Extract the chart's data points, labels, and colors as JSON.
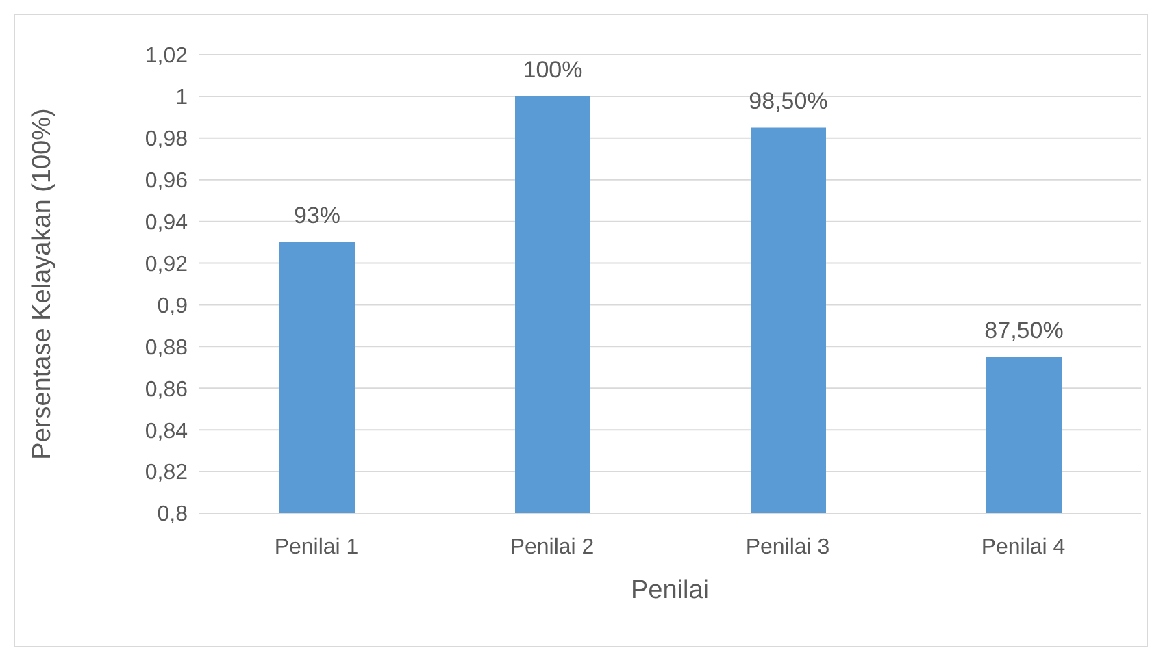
{
  "chart_data": {
    "type": "bar",
    "xlabel": "Penilai",
    "ylabel": "Persentase Kelayakan (100%)",
    "categories": [
      "Penilai 1",
      "Penilai 2",
      "Penilai 3",
      "Penilai 4"
    ],
    "values": [
      0.93,
      1,
      0.985,
      0.875
    ],
    "value_labels": [
      "93%",
      "100%",
      "98,50%",
      "87,50%"
    ],
    "color": "#5b9bd5",
    "ylim": [
      0.8,
      1.02
    ],
    "yticks": [
      {
        "value": 0.8,
        "label": "0,8"
      },
      {
        "value": 0.82,
        "label": "0,82"
      },
      {
        "value": 0.84,
        "label": "0,84"
      },
      {
        "value": 0.86,
        "label": "0,86"
      },
      {
        "value": 0.88,
        "label": "0,88"
      },
      {
        "value": 0.9,
        "label": "0,9"
      },
      {
        "value": 0.92,
        "label": "0,92"
      },
      {
        "value": 0.94,
        "label": "0,94"
      },
      {
        "value": 0.96,
        "label": "0,96"
      },
      {
        "value": 0.98,
        "label": "0,98"
      },
      {
        "value": 1,
        "label": "1"
      },
      {
        "value": 1.02,
        "label": "1,02"
      }
    ],
    "grid": "y",
    "legend": false
  }
}
